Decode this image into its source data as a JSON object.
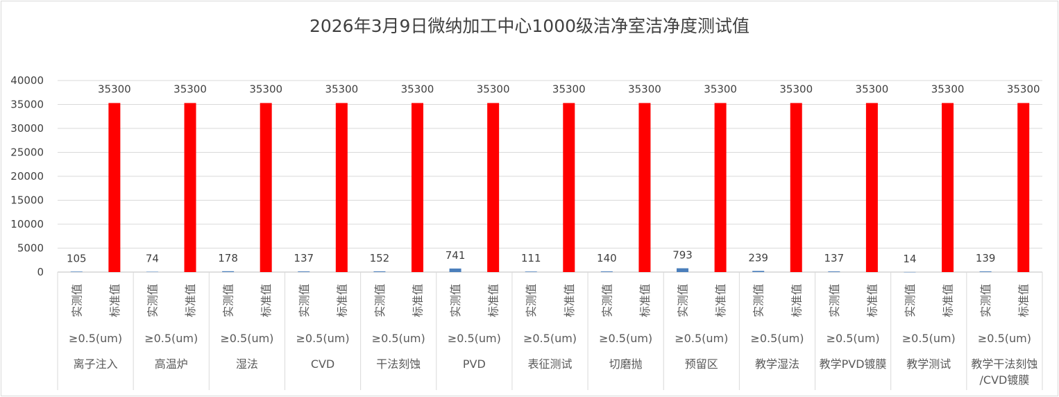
{
  "chart_data": {
    "type": "bar",
    "title": "2026年3月9日微纳加工中心1000级洁净室洁净度测试值",
    "ylim": [
      0,
      40000
    ],
    "yticks": [
      0,
      5000,
      10000,
      15000,
      20000,
      25000,
      30000,
      35000,
      40000
    ],
    "grid": true,
    "legend": "none",
    "bar_labels": [
      "实测值",
      "标准值"
    ],
    "particle_size": "≥0.5(um)",
    "groups": [
      {
        "name": "离子注入",
        "measured": 105,
        "standard": 35300
      },
      {
        "name": "高温炉",
        "measured": 74,
        "standard": 35300
      },
      {
        "name": "湿法",
        "measured": 178,
        "standard": 35300
      },
      {
        "name": "CVD",
        "measured": 137,
        "standard": 35300
      },
      {
        "name": "干法刻蚀",
        "measured": 152,
        "standard": 35300
      },
      {
        "name": "PVD",
        "measured": 741,
        "standard": 35300
      },
      {
        "name": "表征测试",
        "measured": 111,
        "standard": 35300
      },
      {
        "name": "切磨抛",
        "measured": 140,
        "standard": 35300
      },
      {
        "name": "预留区",
        "measured": 793,
        "standard": 35300
      },
      {
        "name": "教学湿法",
        "measured": 239,
        "standard": 35300
      },
      {
        "name": "教学PVD镀膜",
        "measured": 137,
        "standard": 35300
      },
      {
        "name": "教学测试",
        "measured": 14,
        "standard": 35300
      },
      {
        "name": "教学干法刻蚀/CVD镀膜",
        "measured": 139,
        "standard": 35300
      }
    ],
    "colors": {
      "measured": "#4a7ebb",
      "standard": "#ff0000",
      "grid": "#d9d9d9",
      "axis": "#bfbfbf"
    }
  }
}
